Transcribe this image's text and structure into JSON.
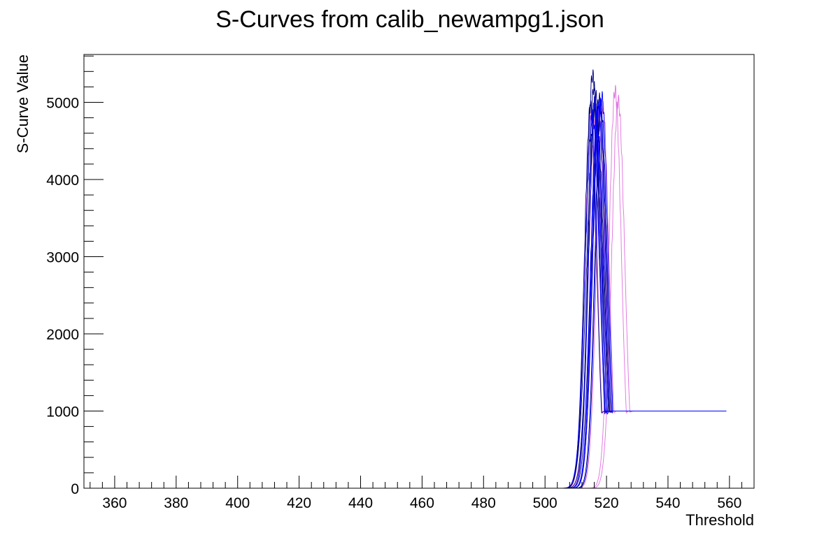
{
  "chart_data": {
    "type": "line",
    "title": "S-Curves from calib_newampg1.json",
    "xlabel": "Threshold",
    "ylabel": "S-Curve Value",
    "xlim": [
      350,
      568
    ],
    "ylim": [
      0,
      5620
    ],
    "x_ticks": [
      360,
      380,
      400,
      420,
      440,
      460,
      480,
      500,
      520,
      540,
      560
    ],
    "y_ticks": [
      0,
      1000,
      2000,
      3000,
      4000,
      5000
    ],
    "x_range": [
      360,
      559
    ],
    "baseline": 0,
    "plateau": 1000,
    "grid": false,
    "legend": "none",
    "colors": {
      "navy": "#000080",
      "blue": "#0000ff",
      "violet": "#e070e0"
    },
    "series": [
      {
        "color": "navy",
        "center": 515.5,
        "width": 2.2,
        "peak": 5350,
        "end": 520
      },
      {
        "color": "navy",
        "center": 516.5,
        "width": 2.3,
        "peak": 5080,
        "end": 521
      },
      {
        "color": "navy",
        "center": 514.8,
        "width": 2.0,
        "peak": 4950,
        "end": 520
      },
      {
        "color": "navy",
        "center": 517.6,
        "width": 2.1,
        "peak": 5050,
        "end": 522
      },
      {
        "color": "navy",
        "center": 516.0,
        "width": 2.4,
        "peak": 4880,
        "end": 521
      },
      {
        "color": "navy",
        "center": 518.2,
        "width": 2.0,
        "peak": 4960,
        "end": 522
      },
      {
        "color": "navy",
        "center": 515.9,
        "width": 1.9,
        "peak": 5200,
        "end": 520
      },
      {
        "color": "navy",
        "center": 517.0,
        "width": 2.2,
        "peak": 4700,
        "end": 521
      },
      {
        "color": "blue",
        "center": 516.2,
        "width": 2.0,
        "peak": 5010,
        "end": 521
      },
      {
        "color": "blue",
        "center": 517.3,
        "width": 2.1,
        "peak": 4920,
        "end": 522
      },
      {
        "color": "blue",
        "center": 518.5,
        "width": 2.0,
        "peak": 5070,
        "end": 522
      },
      {
        "color": "blue",
        "center": 515.4,
        "width": 2.3,
        "peak": 4830,
        "end": 520
      },
      {
        "color": "blue",
        "center": 516.8,
        "width": 1.9,
        "peak": 4760,
        "end": 521
      },
      {
        "color": "blue",
        "center": 517.8,
        "width": 2.2,
        "peak": 4990,
        "end": 522
      },
      {
        "color": "violet",
        "center": 515.0,
        "width": 2.0,
        "peak": 4860,
        "end": 520
      },
      {
        "color": "violet",
        "center": 516.4,
        "width": 2.2,
        "peak": 4780,
        "end": 521
      },
      {
        "color": "violet",
        "center": 517.5,
        "width": 2.1,
        "peak": 4900,
        "end": 522
      },
      {
        "color": "violet",
        "center": 518.8,
        "width": 2.0,
        "peak": 4940,
        "end": 523
      },
      {
        "color": "violet",
        "center": 522.8,
        "width": 2.0,
        "peak": 5150,
        "end": 527
      },
      {
        "color": "violet",
        "center": 523.8,
        "width": 2.1,
        "peak": 5020,
        "end": 529
      }
    ]
  }
}
